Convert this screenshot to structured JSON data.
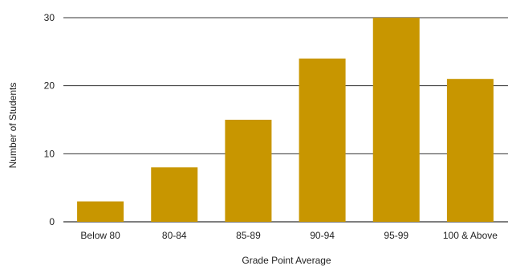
{
  "chart_data": {
    "type": "bar",
    "title": "",
    "xlabel": "Grade Point Average",
    "ylabel": "Number of Students",
    "categories": [
      "Below 80",
      "80-84",
      "85-89",
      "90-94",
      "95-99",
      "100 & Above"
    ],
    "values": [
      3,
      8,
      15,
      24,
      30,
      21
    ],
    "ylim": [
      0,
      30
    ],
    "yticks": [
      0,
      10,
      20,
      30
    ],
    "grid": true,
    "bar_color": "#c89600",
    "grid_color": "#333333"
  }
}
